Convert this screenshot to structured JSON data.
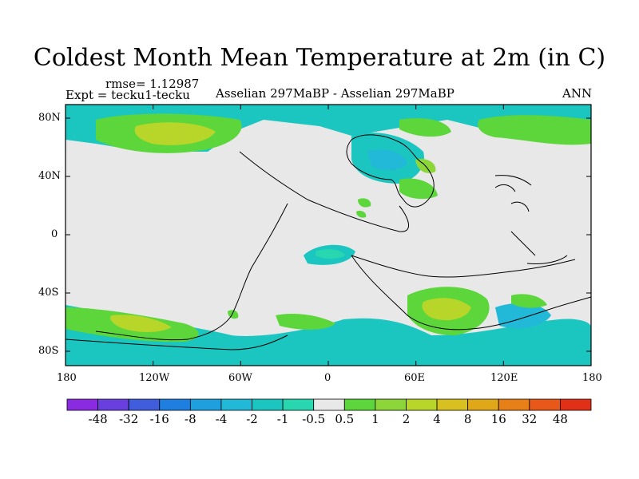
{
  "title": "Coldest Month Mean Temperature at 2m (in C)",
  "rmse": "rmse= 1.12987",
  "expt": "Expt = tecku1-tecku",
  "subtitle": "Asselian 297MaBP - Asselian 297MaBP",
  "season": "ANN",
  "y_ticks": [
    "80N",
    "40N",
    "0",
    "40S",
    "80S"
  ],
  "x_ticks": [
    "180",
    "120W",
    "60W",
    "0",
    "60E",
    "120E",
    "180"
  ],
  "colorbar": {
    "labels": [
      "-48",
      "-32",
      "-16",
      "-8",
      "-4",
      "-2",
      "-1",
      "-0.5",
      "0.5",
      "1",
      "2",
      "4",
      "8",
      "16",
      "32",
      "48"
    ],
    "colors": [
      "#8a2be2",
      "#6a3fe0",
      "#3f5ddc",
      "#1f7fe0",
      "#1e9fe0",
      "#22b8d8",
      "#1cc6c0",
      "#28d6b0",
      "#e8e8e8",
      "#5cd63a",
      "#8cd63a",
      "#b8d62a",
      "#d8c020",
      "#e0a818",
      "#e88018",
      "#e85818",
      "#e03018"
    ]
  },
  "map_colors": {
    "background": "#e8e8e8",
    "cyan": "#1cc6c0",
    "teal": "#28d6b0",
    "light_blue": "#22b8d8",
    "green": "#5cd63a",
    "yellow_green": "#8cd63a",
    "olive": "#b8d62a"
  }
}
